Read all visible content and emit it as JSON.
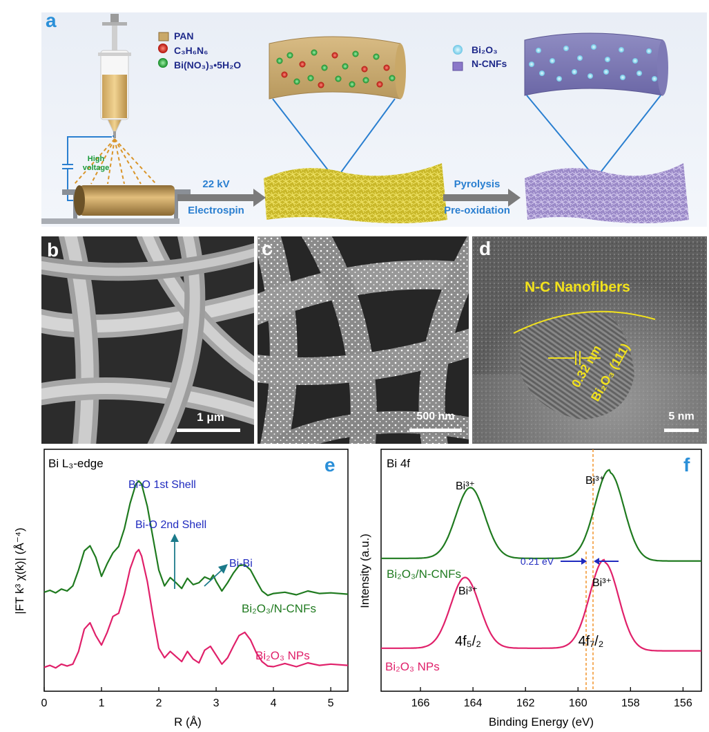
{
  "panel_a": {
    "letter": "a",
    "legend1": [
      {
        "label": "PAN",
        "color": "#c9a868",
        "shape": "cube"
      },
      {
        "label": "C₃H₆N₆",
        "color": "#d81a10",
        "shape": "sphere"
      },
      {
        "label": "Bi(NO₃)₃•5H₂O",
        "color": "#1aa530",
        "shape": "sphere"
      }
    ],
    "legend2": [
      {
        "label": "Bi₂O₃",
        "color": "#8fd8f0",
        "shape": "sphere"
      },
      {
        "label": "N-CNFs",
        "color": "#8b78c9",
        "shape": "cube"
      }
    ],
    "high_voltage": "High voltage",
    "arrow1_top": "22 kV",
    "arrow1_bottom": "Electrospin",
    "arrow2_top": "Pyrolysis",
    "arrow2_bottom": "Pre-oxidation"
  },
  "panel_b": {
    "letter": "b",
    "scale": "1 μm"
  },
  "panel_c": {
    "letter": "c",
    "scale": "500 nm"
  },
  "panel_d": {
    "letter": "d",
    "title": "N-C Nanofibers",
    "spacing": "0.32 nm",
    "plane": "Bi₂O₃ (111)",
    "scale": "5 nm"
  },
  "panel_e": {
    "letter": "e",
    "edge_label": "Bi L₃-edge",
    "ann_first_shell": "Bi-O 1st Shell",
    "ann_second_shell": "Bi-O 2nd Shell",
    "ann_bibi": "Bi-Bi",
    "series_top_label": "Bi₂O₃/N-CNFs",
    "series_bottom_label": "Bi₂O₃  NPs",
    "xlabel": "R (Å)",
    "ylabel": "|FT k³ χ(k)| (Å⁻⁴)"
  },
  "panel_f": {
    "letter": "f",
    "core_label": "Bi 4f",
    "bi3_label": "Bi³⁺",
    "shift_label": "0.21 eV",
    "peak_52": "4f₅/₂",
    "peak_72": "4f₇/₂",
    "series_top_label": "Bi₂O₃/N-CNFs",
    "series_bottom_label": "Bi₂O₃ NPs",
    "xlabel": "Binding Energy (eV)",
    "ylabel": "Intensity (a.u.)"
  },
  "chart_data": [
    {
      "type": "line",
      "panel": "e",
      "xlabel": "R (Å)",
      "ylabel": "|FT k³ χ(k)| (Å⁻⁴)",
      "xlim": [
        0,
        5.3
      ],
      "xticks": [
        0,
        1,
        2,
        3,
        4,
        5
      ],
      "y_ticks_shown": false,
      "series": [
        {
          "name": "Bi₂O₃/N-CNFs",
          "color": "#1f7a1f",
          "x": [
            0.0,
            0.1,
            0.2,
            0.3,
            0.4,
            0.5,
            0.6,
            0.7,
            0.8,
            0.9,
            1.0,
            1.1,
            1.2,
            1.3,
            1.4,
            1.5,
            1.6,
            1.65,
            1.7,
            1.8,
            1.9,
            2.0,
            2.1,
            2.2,
            2.3,
            2.4,
            2.5,
            2.6,
            2.7,
            2.8,
            2.9,
            2.95,
            3.0,
            3.1,
            3.2,
            3.3,
            3.4,
            3.5,
            3.6,
            3.7,
            3.8,
            3.9,
            4.0,
            4.2,
            4.4,
            4.6,
            4.8,
            5.0,
            5.3
          ],
          "y": [
            0.1,
            0.13,
            0.09,
            0.15,
            0.12,
            0.2,
            0.45,
            0.75,
            0.83,
            0.65,
            0.35,
            0.55,
            0.72,
            0.82,
            1.1,
            1.5,
            1.8,
            1.85,
            1.8,
            1.45,
            0.95,
            0.45,
            0.2,
            0.33,
            0.25,
            0.16,
            0.32,
            0.22,
            0.25,
            0.34,
            0.3,
            0.37,
            0.27,
            0.12,
            0.25,
            0.4,
            0.52,
            0.53,
            0.45,
            0.28,
            0.12,
            0.05,
            0.08,
            0.1,
            0.06,
            0.12,
            0.08,
            0.09,
            0.07
          ]
        },
        {
          "name": "Bi₂O₃  NPs",
          "color": "#e0206a",
          "x": [
            0.0,
            0.1,
            0.2,
            0.3,
            0.4,
            0.5,
            0.6,
            0.7,
            0.8,
            0.9,
            1.0,
            1.1,
            1.2,
            1.3,
            1.4,
            1.5,
            1.6,
            1.65,
            1.7,
            1.8,
            1.9,
            2.0,
            2.1,
            2.2,
            2.3,
            2.4,
            2.5,
            2.6,
            2.7,
            2.8,
            2.9,
            3.0,
            3.1,
            3.2,
            3.3,
            3.4,
            3.5,
            3.6,
            3.7,
            3.8,
            3.9,
            4.0,
            4.2,
            4.4,
            4.6,
            4.8,
            5.0,
            5.3
          ],
          "y": [
            0.05,
            0.08,
            0.04,
            0.1,
            0.07,
            0.1,
            0.3,
            0.65,
            0.75,
            0.55,
            0.4,
            0.6,
            0.85,
            0.9,
            1.2,
            1.6,
            1.85,
            1.9,
            1.8,
            1.4,
            0.85,
            0.35,
            0.2,
            0.3,
            0.22,
            0.14,
            0.3,
            0.18,
            0.12,
            0.32,
            0.38,
            0.24,
            0.1,
            0.2,
            0.38,
            0.55,
            0.6,
            0.48,
            0.28,
            0.14,
            0.07,
            0.06,
            0.11,
            0.06,
            0.12,
            0.08,
            0.1,
            0.08
          ]
        }
      ],
      "annotations": [
        "Bi-O 1st Shell",
        "Bi-O 2nd Shell",
        "Bi-Bi"
      ]
    },
    {
      "type": "line",
      "panel": "f",
      "xlabel": "Binding Energy (eV)",
      "ylabel": "Intensity (a.u.)",
      "xlim": [
        167.5,
        155.3
      ],
      "xticks": [
        166,
        164,
        162,
        160,
        158,
        156
      ],
      "x_reversed": true,
      "y_ticks_shown": false,
      "series": [
        {
          "name": "Bi₂O₃/N-CNFs",
          "color": "#1f7a1f",
          "peaks": [
            {
              "center": 164.1,
              "label": "Bi³⁺"
            },
            {
              "center": 158.8,
              "label": "Bi³⁺"
            }
          ]
        },
        {
          "name": "Bi₂O₃ NPs",
          "color": "#e0206a",
          "peaks": [
            {
              "center": 164.3,
              "label": "4f₅/₂"
            },
            {
              "center": 159.0,
              "label": "4f₇/₂"
            }
          ]
        }
      ],
      "shift": "0.21 eV"
    }
  ]
}
